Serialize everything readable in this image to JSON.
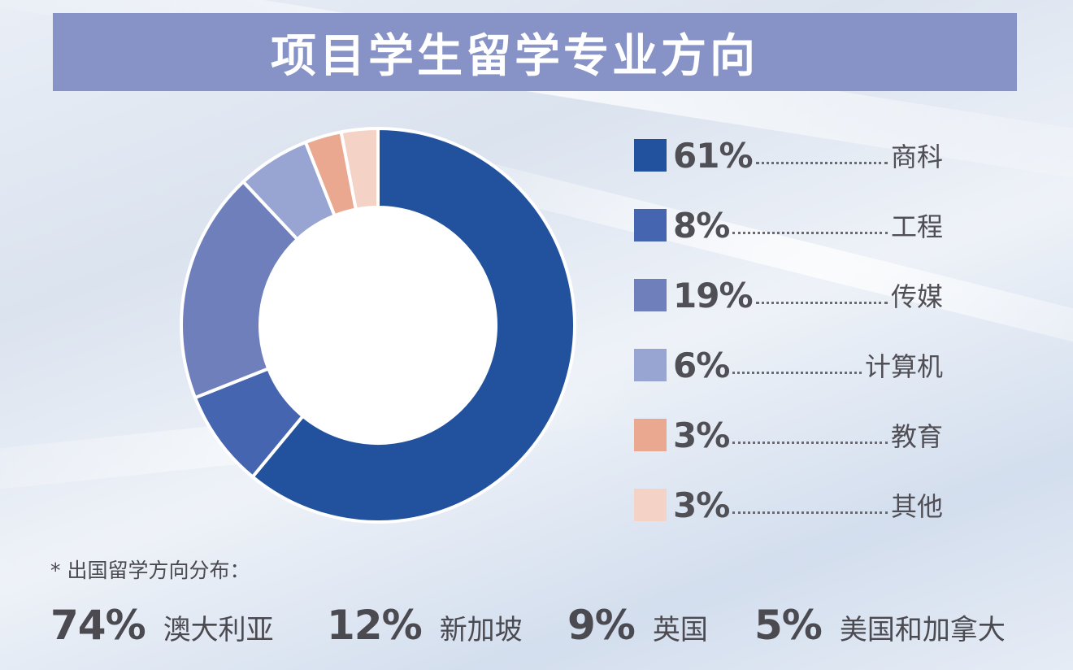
{
  "title": "项目学生留学专业方向",
  "chart_data": {
    "type": "pie",
    "donut": true,
    "title": "项目学生留学专业方向",
    "slices": [
      {
        "label": "商科",
        "value": 61,
        "pct_label": "61%",
        "color": "#22529e"
      },
      {
        "label": "工程",
        "value": 8,
        "pct_label": "8%",
        "color": "#4565b0"
      },
      {
        "label": "传媒",
        "value": 19,
        "pct_label": "19%",
        "color": "#6e7fbc"
      },
      {
        "label": "计算机",
        "value": 6,
        "pct_label": "6%",
        "color": "#98a5d2"
      },
      {
        "label": "教育",
        "value": 3,
        "pct_label": "3%",
        "color": "#eba891"
      },
      {
        "label": "其他",
        "value": 3,
        "pct_label": "3%",
        "color": "#f4d2c6"
      }
    ],
    "legend_position": "right"
  },
  "note": "* 出国留学方向分布：",
  "destinations": [
    {
      "pct": "74%",
      "name": "澳大利亚"
    },
    {
      "pct": "12%",
      "name": "新加坡"
    },
    {
      "pct": "9%",
      "name": "英国"
    },
    {
      "pct": "5%",
      "name": "美国和加拿大"
    }
  ]
}
